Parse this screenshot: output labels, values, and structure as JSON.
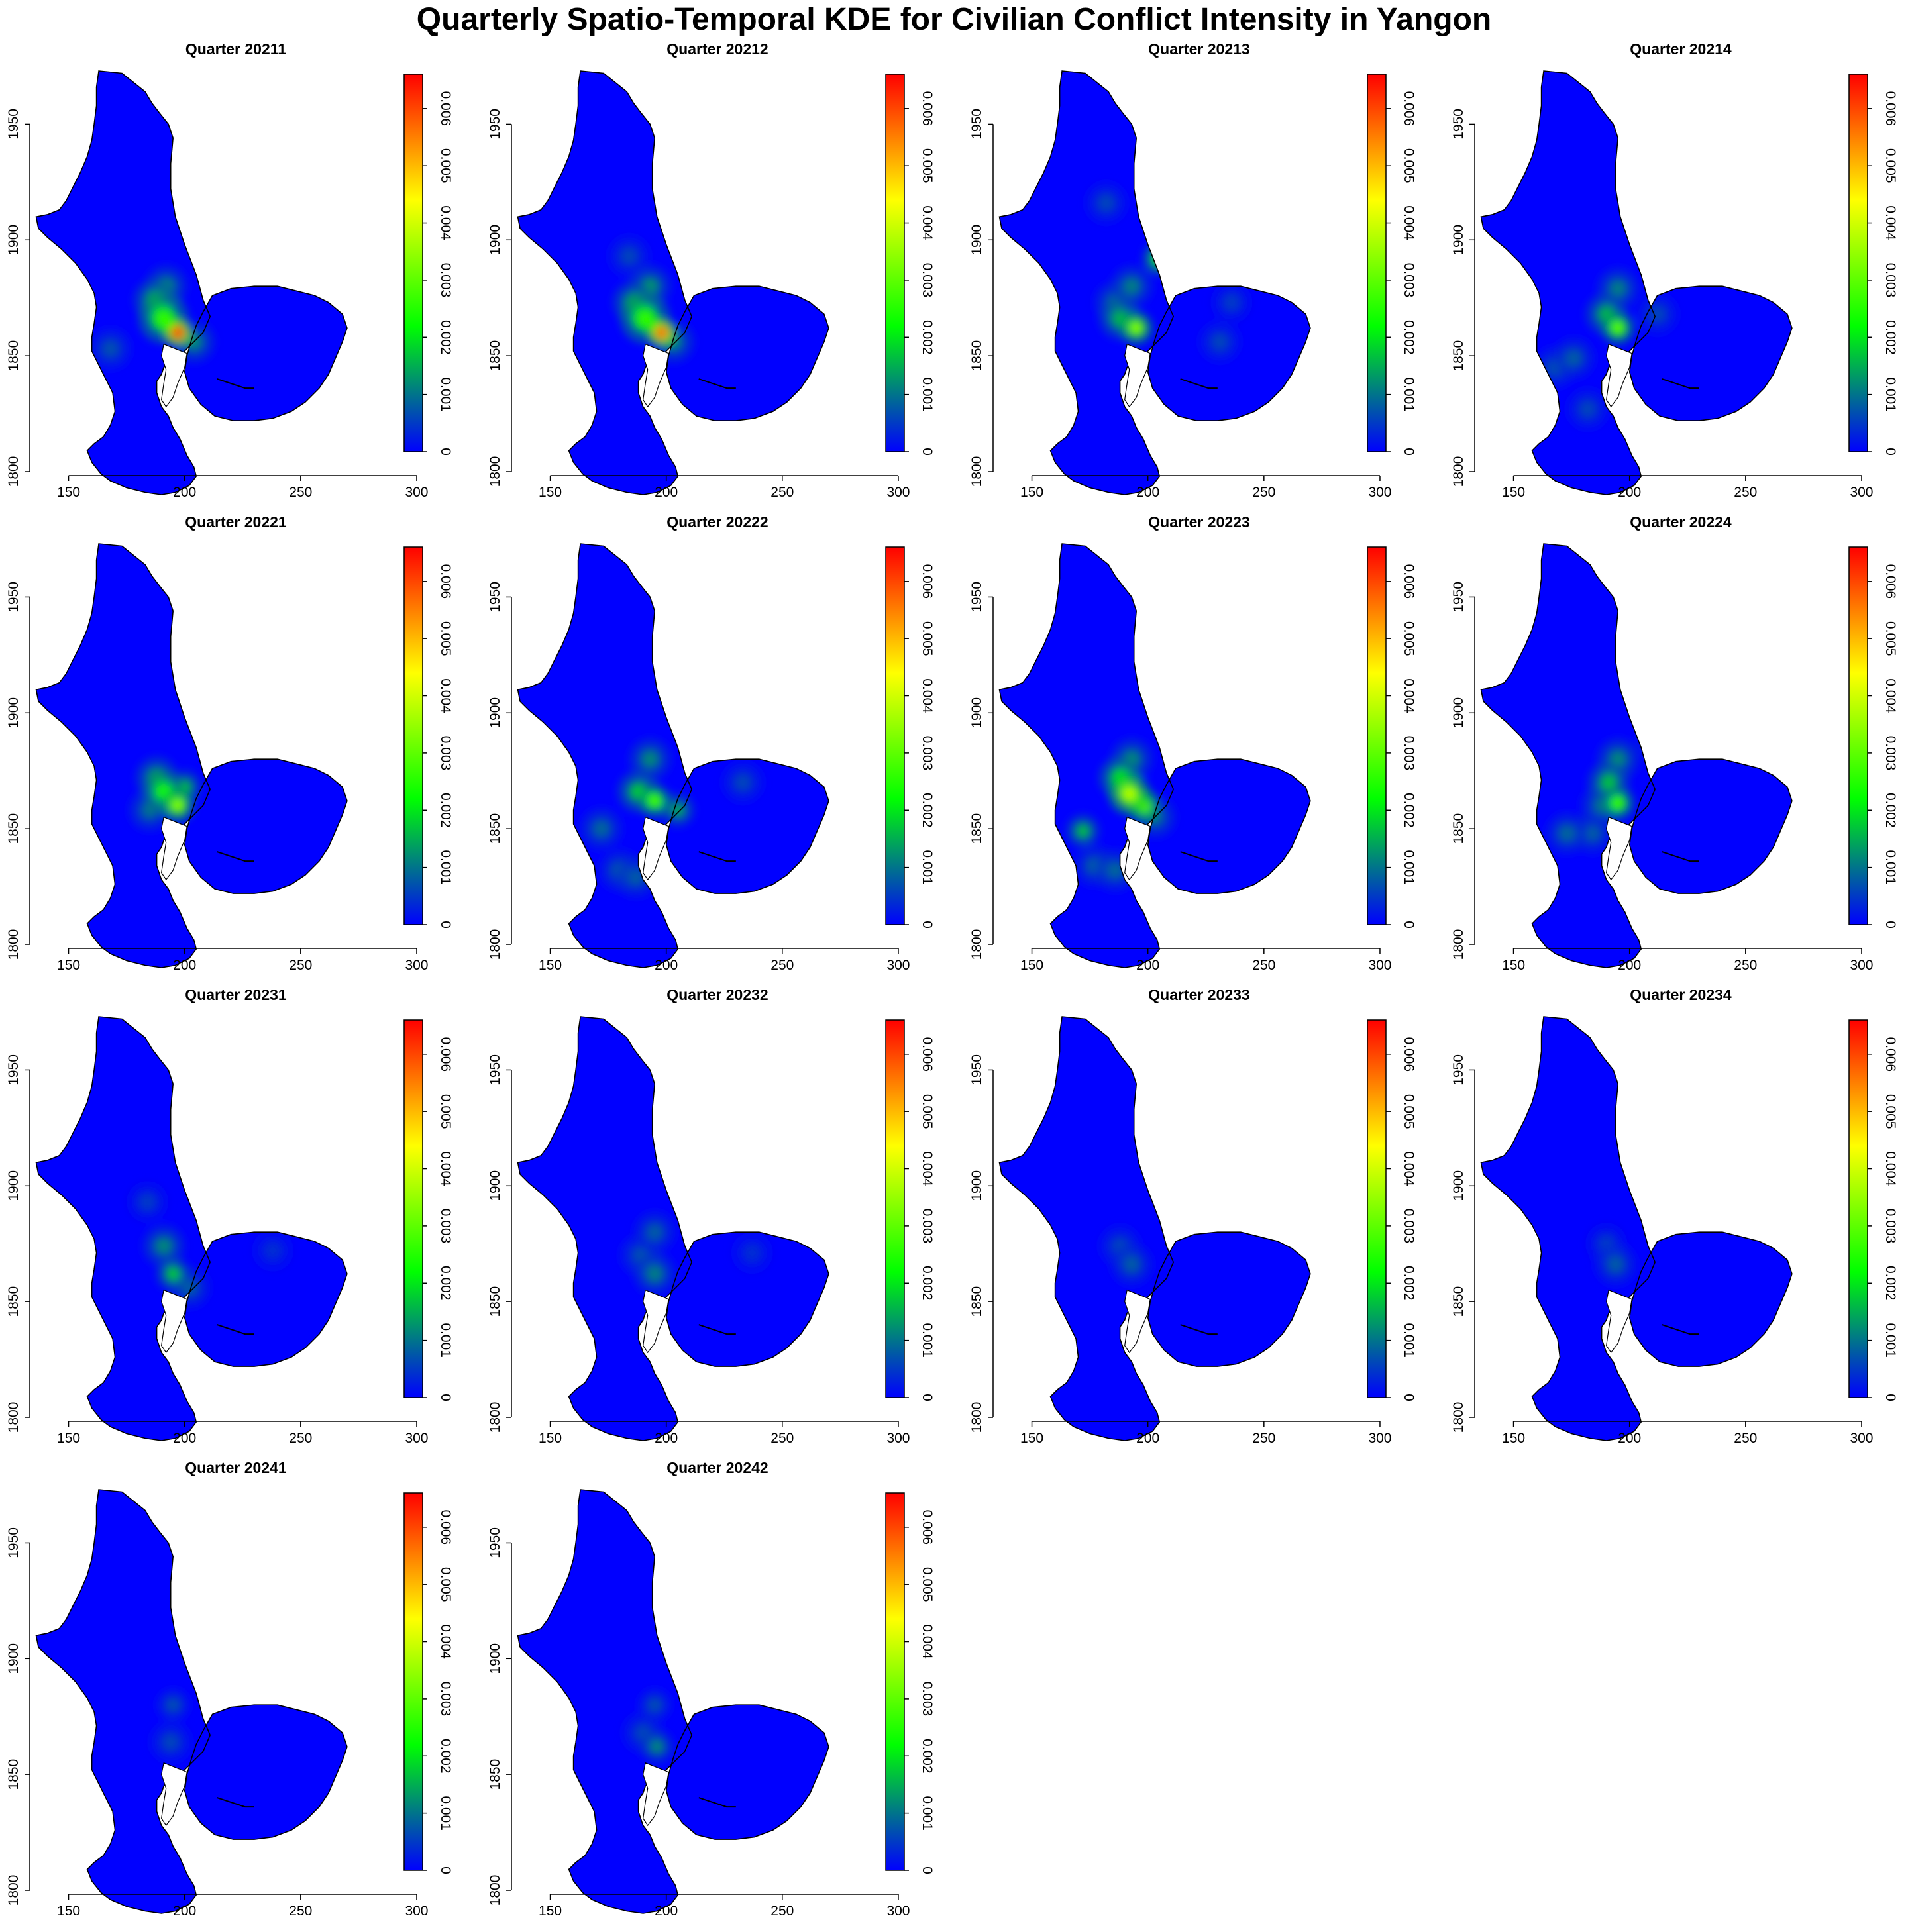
{
  "title": "Quarterly Spatio-Temporal KDE for Civilian Conflict Intensity in Yangon",
  "colors": {
    "background": "#ffffff",
    "low": "#0000ff",
    "mid": "#00ff00",
    "high_mid": "#ffff00",
    "high": "#ff0000",
    "outline": "#000000"
  },
  "chart_data": {
    "type": "heatmap",
    "layout": "small-multiples 4 columns",
    "xlim": [
      135,
      312
    ],
    "ylim": [
      1800,
      1975
    ],
    "x_ticks": [
      "150",
      "200",
      "250",
      "300"
    ],
    "y_ticks": [
      "1800",
      "1850",
      "1900",
      "1950"
    ],
    "colorbar": {
      "range": [
        0,
        0.0066
      ],
      "ticks": [
        "0",
        "0.001",
        "0.002",
        "0.003",
        "0.004",
        "0.005",
        "0.006"
      ],
      "colors": [
        "#0000ff",
        "#00ff00",
        "#ffff00",
        "#ff0000"
      ]
    },
    "panels": [
      {
        "title": "Quarter 20211",
        "hotspots": [
          {
            "x": 197,
            "y": 1860,
            "density": 0.0066,
            "spread": 3.5
          },
          {
            "x": 191,
            "y": 1866,
            "density": 0.0026,
            "spread": 6
          },
          {
            "x": 187,
            "y": 1874,
            "density": 0.0016,
            "spread": 5
          },
          {
            "x": 192,
            "y": 1880,
            "density": 0.0012,
            "spread": 5
          },
          {
            "x": 204,
            "y": 1856,
            "density": 0.0012,
            "spread": 5
          },
          {
            "x": 168,
            "y": 1853,
            "density": 0.0007,
            "spread": 5
          }
        ]
      },
      {
        "title": "Quarter 20212",
        "hotspots": [
          {
            "x": 198,
            "y": 1860,
            "density": 0.0062,
            "spread": 3.5
          },
          {
            "x": 191,
            "y": 1866,
            "density": 0.0026,
            "spread": 6
          },
          {
            "x": 186,
            "y": 1873,
            "density": 0.0016,
            "spread": 5
          },
          {
            "x": 193,
            "y": 1880,
            "density": 0.0013,
            "spread": 5
          },
          {
            "x": 203,
            "y": 1856,
            "density": 0.0012,
            "spread": 5
          },
          {
            "x": 184,
            "y": 1893,
            "density": 0.0006,
            "spread": 5
          }
        ]
      },
      {
        "title": "Quarter 20213",
        "hotspots": [
          {
            "x": 195,
            "y": 1862,
            "density": 0.0034,
            "spread": 4
          },
          {
            "x": 205,
            "y": 1892,
            "density": 0.0025,
            "spread": 4
          },
          {
            "x": 188,
            "y": 1866,
            "density": 0.0016,
            "spread": 5
          },
          {
            "x": 193,
            "y": 1880,
            "density": 0.0011,
            "spread": 5
          },
          {
            "x": 186,
            "y": 1873,
            "density": 0.001,
            "spread": 5
          },
          {
            "x": 231,
            "y": 1856,
            "density": 0.0006,
            "spread": 5
          },
          {
            "x": 182,
            "y": 1916,
            "density": 0.0006,
            "spread": 5
          },
          {
            "x": 236,
            "y": 1873,
            "density": 0.0005,
            "spread": 5
          }
        ]
      },
      {
        "title": "Quarter 20214",
        "hotspots": [
          {
            "x": 195,
            "y": 1862,
            "density": 0.003,
            "spread": 4
          },
          {
            "x": 190,
            "y": 1868,
            "density": 0.0016,
            "spread": 5
          },
          {
            "x": 195,
            "y": 1879,
            "density": 0.0011,
            "spread": 5
          },
          {
            "x": 176,
            "y": 1849,
            "density": 0.0008,
            "spread": 5
          },
          {
            "x": 168,
            "y": 1845,
            "density": 0.0007,
            "spread": 5
          },
          {
            "x": 182,
            "y": 1827,
            "density": 0.0006,
            "spread": 5
          },
          {
            "x": 212,
            "y": 1868,
            "density": 0.0006,
            "spread": 5
          }
        ]
      },
      {
        "title": "Quarter 20221",
        "hotspots": [
          {
            "x": 197,
            "y": 1860,
            "density": 0.0034,
            "spread": 4
          },
          {
            "x": 191,
            "y": 1866,
            "density": 0.0024,
            "spread": 5
          },
          {
            "x": 188,
            "y": 1872,
            "density": 0.0016,
            "spread": 5
          },
          {
            "x": 200,
            "y": 1868,
            "density": 0.0017,
            "spread": 4
          },
          {
            "x": 185,
            "y": 1858,
            "density": 0.001,
            "spread": 5
          }
        ]
      },
      {
        "title": "Quarter 20222",
        "hotspots": [
          {
            "x": 195,
            "y": 1862,
            "density": 0.0028,
            "spread": 4
          },
          {
            "x": 188,
            "y": 1866,
            "density": 0.0018,
            "spread": 5
          },
          {
            "x": 205,
            "y": 1858,
            "density": 0.0015,
            "spread": 4
          },
          {
            "x": 193,
            "y": 1880,
            "density": 0.0012,
            "spread": 5
          },
          {
            "x": 172,
            "y": 1850,
            "density": 0.0009,
            "spread": 5
          },
          {
            "x": 180,
            "y": 1832,
            "density": 0.0008,
            "spread": 5
          },
          {
            "x": 187,
            "y": 1829,
            "density": 0.0008,
            "spread": 5
          },
          {
            "x": 233,
            "y": 1870,
            "density": 0.0006,
            "spread": 5
          }
        ]
      },
      {
        "title": "Quarter 20223",
        "hotspots": [
          {
            "x": 192,
            "y": 1865,
            "density": 0.0038,
            "spread": 5
          },
          {
            "x": 198,
            "y": 1860,
            "density": 0.0032,
            "spread": 4
          },
          {
            "x": 188,
            "y": 1872,
            "density": 0.0021,
            "spread": 5
          },
          {
            "x": 172,
            "y": 1849,
            "density": 0.0017,
            "spread": 4
          },
          {
            "x": 193,
            "y": 1880,
            "density": 0.0012,
            "spread": 5
          },
          {
            "x": 186,
            "y": 1832,
            "density": 0.0009,
            "spread": 5
          },
          {
            "x": 177,
            "y": 1834,
            "density": 0.0008,
            "spread": 5
          },
          {
            "x": 203,
            "y": 1855,
            "density": 0.001,
            "spread": 5
          }
        ]
      },
      {
        "title": "Quarter 20224",
        "hotspots": [
          {
            "x": 195,
            "y": 1861,
            "density": 0.0027,
            "spread": 4
          },
          {
            "x": 191,
            "y": 1870,
            "density": 0.0017,
            "spread": 5
          },
          {
            "x": 195,
            "y": 1880,
            "density": 0.0012,
            "spread": 5
          },
          {
            "x": 173,
            "y": 1848,
            "density": 0.0009,
            "spread": 5
          },
          {
            "x": 184,
            "y": 1848,
            "density": 0.0008,
            "spread": 5
          },
          {
            "x": 188,
            "y": 1860,
            "density": 0.001,
            "spread": 5
          },
          {
            "x": 212,
            "y": 1888,
            "density": 0.0006,
            "spread": 5
          }
        ]
      },
      {
        "title": "Quarter 20231",
        "hotspots": [
          {
            "x": 195,
            "y": 1862,
            "density": 0.0018,
            "spread": 4
          },
          {
            "x": 191,
            "y": 1874,
            "density": 0.0012,
            "spread": 5
          },
          {
            "x": 202,
            "y": 1856,
            "density": 0.0008,
            "spread": 5
          },
          {
            "x": 184,
            "y": 1893,
            "density": 0.0005,
            "spread": 5
          },
          {
            "x": 238,
            "y": 1872,
            "density": 0.0004,
            "spread": 5
          }
        ]
      },
      {
        "title": "Quarter 20232",
        "hotspots": [
          {
            "x": 195,
            "y": 1862,
            "density": 0.0011,
            "spread": 5
          },
          {
            "x": 195,
            "y": 1880,
            "density": 0.0008,
            "spread": 5
          },
          {
            "x": 189,
            "y": 1870,
            "density": 0.0007,
            "spread": 5
          },
          {
            "x": 237,
            "y": 1871,
            "density": 0.0004,
            "spread": 5
          }
        ]
      },
      {
        "title": "Quarter 20233",
        "hotspots": [
          {
            "x": 193,
            "y": 1866,
            "density": 0.0008,
            "spread": 5
          },
          {
            "x": 188,
            "y": 1874,
            "density": 0.0006,
            "spread": 5
          }
        ]
      },
      {
        "title": "Quarter 20234",
        "hotspots": [
          {
            "x": 194,
            "y": 1866,
            "density": 0.0008,
            "spread": 5
          },
          {
            "x": 190,
            "y": 1875,
            "density": 0.0005,
            "spread": 5
          }
        ]
      },
      {
        "title": "Quarter 20241",
        "hotspots": [
          {
            "x": 195,
            "y": 1880,
            "density": 0.0007,
            "spread": 4
          },
          {
            "x": 194,
            "y": 1864,
            "density": 0.0006,
            "spread": 5
          }
        ]
      },
      {
        "title": "Quarter 20242",
        "hotspots": [
          {
            "x": 196,
            "y": 1862,
            "density": 0.0012,
            "spread": 4
          },
          {
            "x": 195,
            "y": 1880,
            "density": 0.0007,
            "spread": 4
          },
          {
            "x": 190,
            "y": 1868,
            "density": 0.0006,
            "spread": 5
          }
        ]
      }
    ]
  }
}
